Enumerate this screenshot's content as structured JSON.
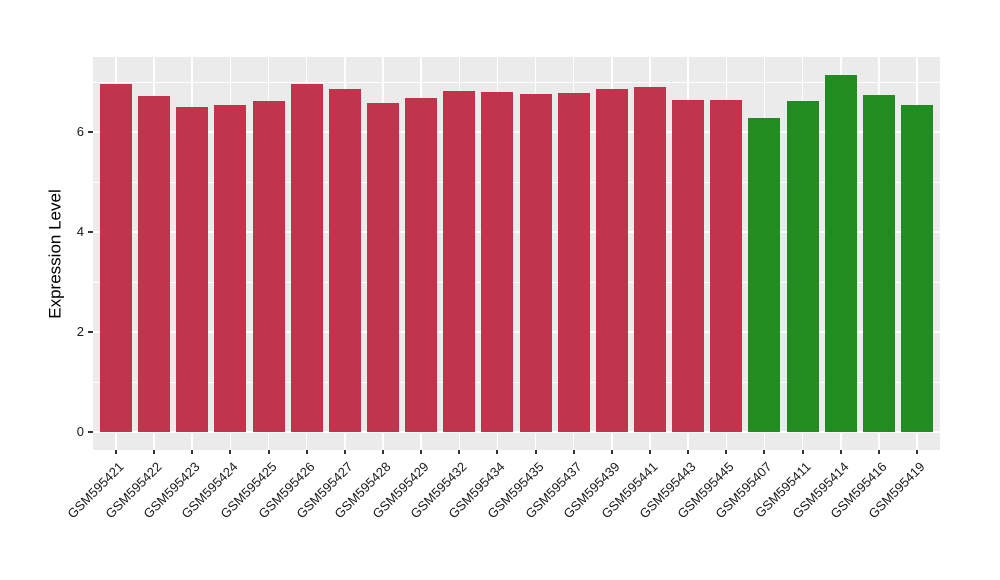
{
  "figure": {
    "background_color": "#ffffff",
    "panel_background_color": "#ebebeb",
    "gridline_color": "#ffffff",
    "tick_mark_color": "#333333",
    "axis_text_color": "#1a1a1a"
  },
  "chart_data": {
    "type": "bar",
    "title": "",
    "xlabel": "",
    "ylabel": "Expression Level",
    "categories": [
      "GSM595421",
      "GSM595422",
      "GSM595423",
      "GSM595424",
      "GSM595425",
      "GSM595426",
      "GSM595427",
      "GSM595428",
      "GSM595429",
      "GSM595432",
      "GSM595434",
      "GSM595435",
      "GSM595437",
      "GSM595439",
      "GSM595441",
      "GSM595443",
      "GSM595445",
      "GSM595407",
      "GSM595411",
      "GSM595414",
      "GSM595416",
      "GSM595419"
    ],
    "values": [
      6.96,
      6.72,
      6.5,
      6.54,
      6.62,
      6.96,
      6.86,
      6.58,
      6.68,
      6.82,
      6.8,
      6.76,
      6.78,
      6.86,
      6.9,
      6.64,
      6.64,
      6.28,
      6.62,
      7.14,
      6.74,
      6.54
    ],
    "bar_colors": [
      "#c2334c",
      "#c2334c",
      "#c2334c",
      "#c2334c",
      "#c2334c",
      "#c2334c",
      "#c2334c",
      "#c2334c",
      "#c2334c",
      "#c2334c",
      "#c2334c",
      "#c2334c",
      "#c2334c",
      "#c2334c",
      "#c2334c",
      "#c2334c",
      "#c2334c",
      "#228b22",
      "#228b22",
      "#228b22",
      "#228b22",
      "#228b22"
    ],
    "color_groups": {
      "red": "#c2334c",
      "green": "#228b22"
    },
    "yticks": [
      0,
      2,
      4,
      6
    ],
    "minor_yticks": [
      1,
      3,
      5,
      7
    ],
    "ylim": [
      -0.36,
      7.52
    ],
    "x_tick_label_angle": 45,
    "grid": true,
    "legend": "none"
  }
}
